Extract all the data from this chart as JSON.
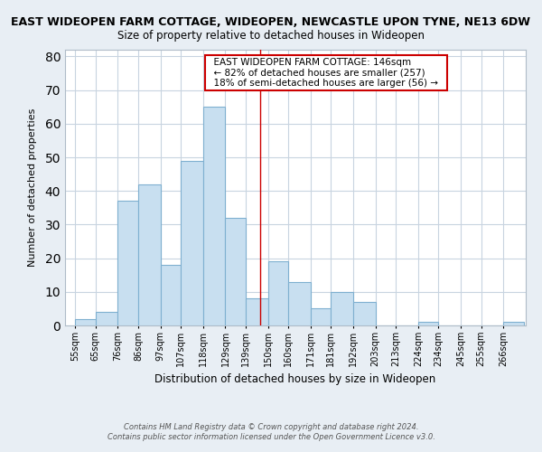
{
  "title": "EAST WIDEOPEN FARM COTTAGE, WIDEOPEN, NEWCASTLE UPON TYNE, NE13 6DW",
  "subtitle": "Size of property relative to detached houses in Wideopen",
  "xlabel": "Distribution of detached houses by size in Wideopen",
  "ylabel": "Number of detached properties",
  "bar_labels": [
    "55sqm",
    "65sqm",
    "76sqm",
    "86sqm",
    "97sqm",
    "107sqm",
    "118sqm",
    "129sqm",
    "139sqm",
    "150sqm",
    "160sqm",
    "171sqm",
    "181sqm",
    "192sqm",
    "203sqm",
    "213sqm",
    "224sqm",
    "234sqm",
    "245sqm",
    "255sqm",
    "266sqm"
  ],
  "bar_values": [
    2,
    4,
    37,
    42,
    18,
    49,
    65,
    32,
    8,
    19,
    13,
    5,
    10,
    7,
    0,
    0,
    1,
    0,
    0,
    0,
    1
  ],
  "bar_left_edges": [
    55,
    65,
    76,
    86,
    97,
    107,
    118,
    129,
    139,
    150,
    160,
    171,
    181,
    192,
    203,
    213,
    224,
    234,
    245,
    255,
    266
  ],
  "bar_widths": [
    10,
    11,
    10,
    11,
    10,
    11,
    11,
    10,
    11,
    10,
    11,
    10,
    11,
    11,
    10,
    11,
    10,
    11,
    10,
    11,
    10
  ],
  "bar_color": "#c8dff0",
  "bar_edge_color": "#7fb0d0",
  "reference_line_x": 146,
  "reference_line_color": "#cc0000",
  "ylim": [
    0,
    82
  ],
  "yticks": [
    0,
    10,
    20,
    30,
    40,
    50,
    60,
    70,
    80
  ],
  "annotation_title": "EAST WIDEOPEN FARM COTTAGE: 146sqm",
  "annotation_line1": "← 82% of detached houses are smaller (257)",
  "annotation_line2": "18% of semi-detached houses are larger (56) →",
  "footer_line1": "Contains HM Land Registry data © Crown copyright and database right 2024.",
  "footer_line2": "Contains public sector information licensed under the Open Government Licence v3.0.",
  "background_color": "#e8eef4",
  "plot_bg_color": "#ffffff",
  "grid_color": "#c8d4e0"
}
